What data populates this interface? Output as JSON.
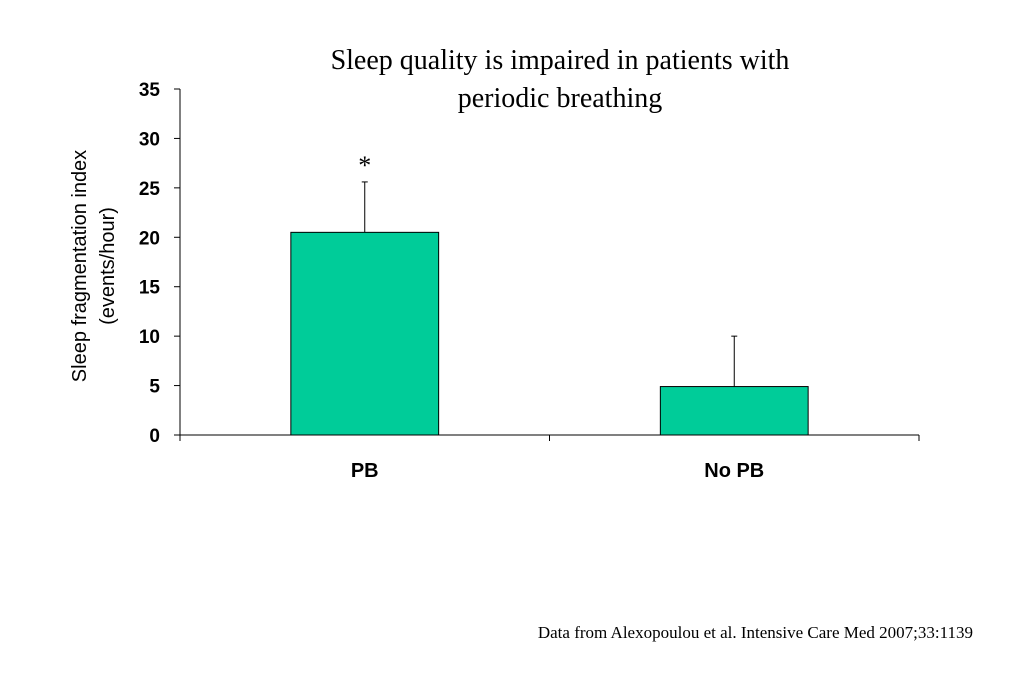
{
  "chart_data": {
    "type": "bar",
    "title_lines": [
      "Sleep quality is impaired in patients with",
      "periodic breathing"
    ],
    "categories": [
      "PB",
      "No PB"
    ],
    "values": [
      20.5,
      4.9
    ],
    "error_upper": [
      25.6,
      10.0
    ],
    "annotations": [
      "*",
      ""
    ],
    "ylabel_lines": [
      "Sleep fragmentation index",
      "(events/hour)"
    ],
    "xlabel": "",
    "ylim": [
      0,
      35
    ],
    "yticks": [
      "0",
      "5",
      "10",
      "15",
      "20",
      "25",
      "30",
      "35"
    ],
    "bar_color": "#00CC99",
    "grid": false,
    "legend": "none"
  },
  "source_note": "Data from Alexopoulou et al. Intensive Care Med 2007;33:1139"
}
